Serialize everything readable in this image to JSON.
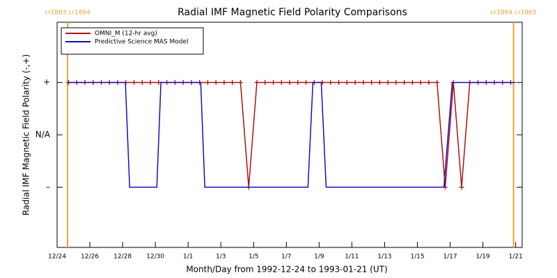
{
  "chart_data": {
    "type": "line",
    "title": "Radial IMF Magnetic Field Polarity Comparisons",
    "x_label": "Month/Day from 1992-12-24 to 1993-01-21 (UT)",
    "y_label": "Radial IMF Magnetic Field Polarity (-,+)",
    "xlim": [
      0,
      28.4
    ],
    "xticks": [
      {
        "value": 0,
        "label": "12/24"
      },
      {
        "value": 2,
        "label": "12/26"
      },
      {
        "value": 4,
        "label": "12/28"
      },
      {
        "value": 6,
        "label": "12/30"
      },
      {
        "value": 8,
        "label": "1/1"
      },
      {
        "value": 10,
        "label": "1/3"
      },
      {
        "value": 12,
        "label": "1/5"
      },
      {
        "value": 14,
        "label": "1/7"
      },
      {
        "value": 16,
        "label": "1/9"
      },
      {
        "value": 18,
        "label": "1/11"
      },
      {
        "value": 20,
        "label": "1/13"
      },
      {
        "value": 22,
        "label": "1/15"
      },
      {
        "value": 24,
        "label": "1/17"
      },
      {
        "value": 26,
        "label": "1/19"
      },
      {
        "value": 28,
        "label": "1/21"
      }
    ],
    "ylim": [
      -2.15,
      2.15
    ],
    "yticks": [
      {
        "value": 1,
        "label": "+"
      },
      {
        "value": 0,
        "label": "N/A"
      },
      {
        "value": -1,
        "label": "–"
      }
    ],
    "legend": "upper left",
    "annotation_color": "#f0a030",
    "annotations": [
      {
        "x": 0.64,
        "label": "cr1863 cr1864"
      },
      {
        "x": 27.87,
        "label": "cr1864 cr1865"
      }
    ],
    "series": [
      {
        "name": "OMNI_M (12-hr avg)",
        "color": "#b01010",
        "marker": "plus",
        "x": [
          0.7,
          1.2,
          1.7,
          2.2,
          2.7,
          3.2,
          3.7,
          4.2,
          4.7,
          5.2,
          5.7,
          6.2,
          6.7,
          7.2,
          7.7,
          8.2,
          8.7,
          9.2,
          9.7,
          10.2,
          10.7,
          11.2,
          11.7,
          12.2,
          12.7,
          13.2,
          13.7,
          14.2,
          14.7,
          15.2,
          15.7,
          16.2,
          16.7,
          17.2,
          17.7,
          18.2,
          18.7,
          19.2,
          19.7,
          20.2,
          20.7,
          21.2,
          21.7,
          22.2,
          22.7,
          23.2,
          23.7,
          24.2,
          24.7,
          25.2,
          25.7,
          26.2,
          26.7,
          27.2,
          27.7
        ],
        "values": [
          1,
          1,
          1,
          1,
          1,
          1,
          1,
          1,
          1,
          1,
          1,
          1,
          1,
          1,
          1,
          1,
          1,
          1,
          1,
          1,
          1,
          1,
          -1,
          1,
          1,
          1,
          1,
          1,
          1,
          1,
          1,
          1,
          1,
          1,
          1,
          1,
          1,
          1,
          1,
          1,
          1,
          1,
          1,
          1,
          1,
          1,
          -1,
          1,
          -1,
          1,
          1,
          1,
          1,
          1,
          1
        ]
      },
      {
        "name": "Predictive Science MAS Model",
        "color": "#1010c0",
        "x": [
          0.68,
          4.17,
          4.43,
          6.09,
          6.34,
          8.77,
          9.02,
          15.32,
          15.62,
          16.13,
          16.43,
          23.62,
          24.13,
          28.0
        ],
        "values": [
          1,
          1,
          -1,
          -1,
          1,
          1,
          -1,
          -1,
          1,
          1,
          -1,
          -1,
          1,
          1
        ]
      }
    ]
  }
}
